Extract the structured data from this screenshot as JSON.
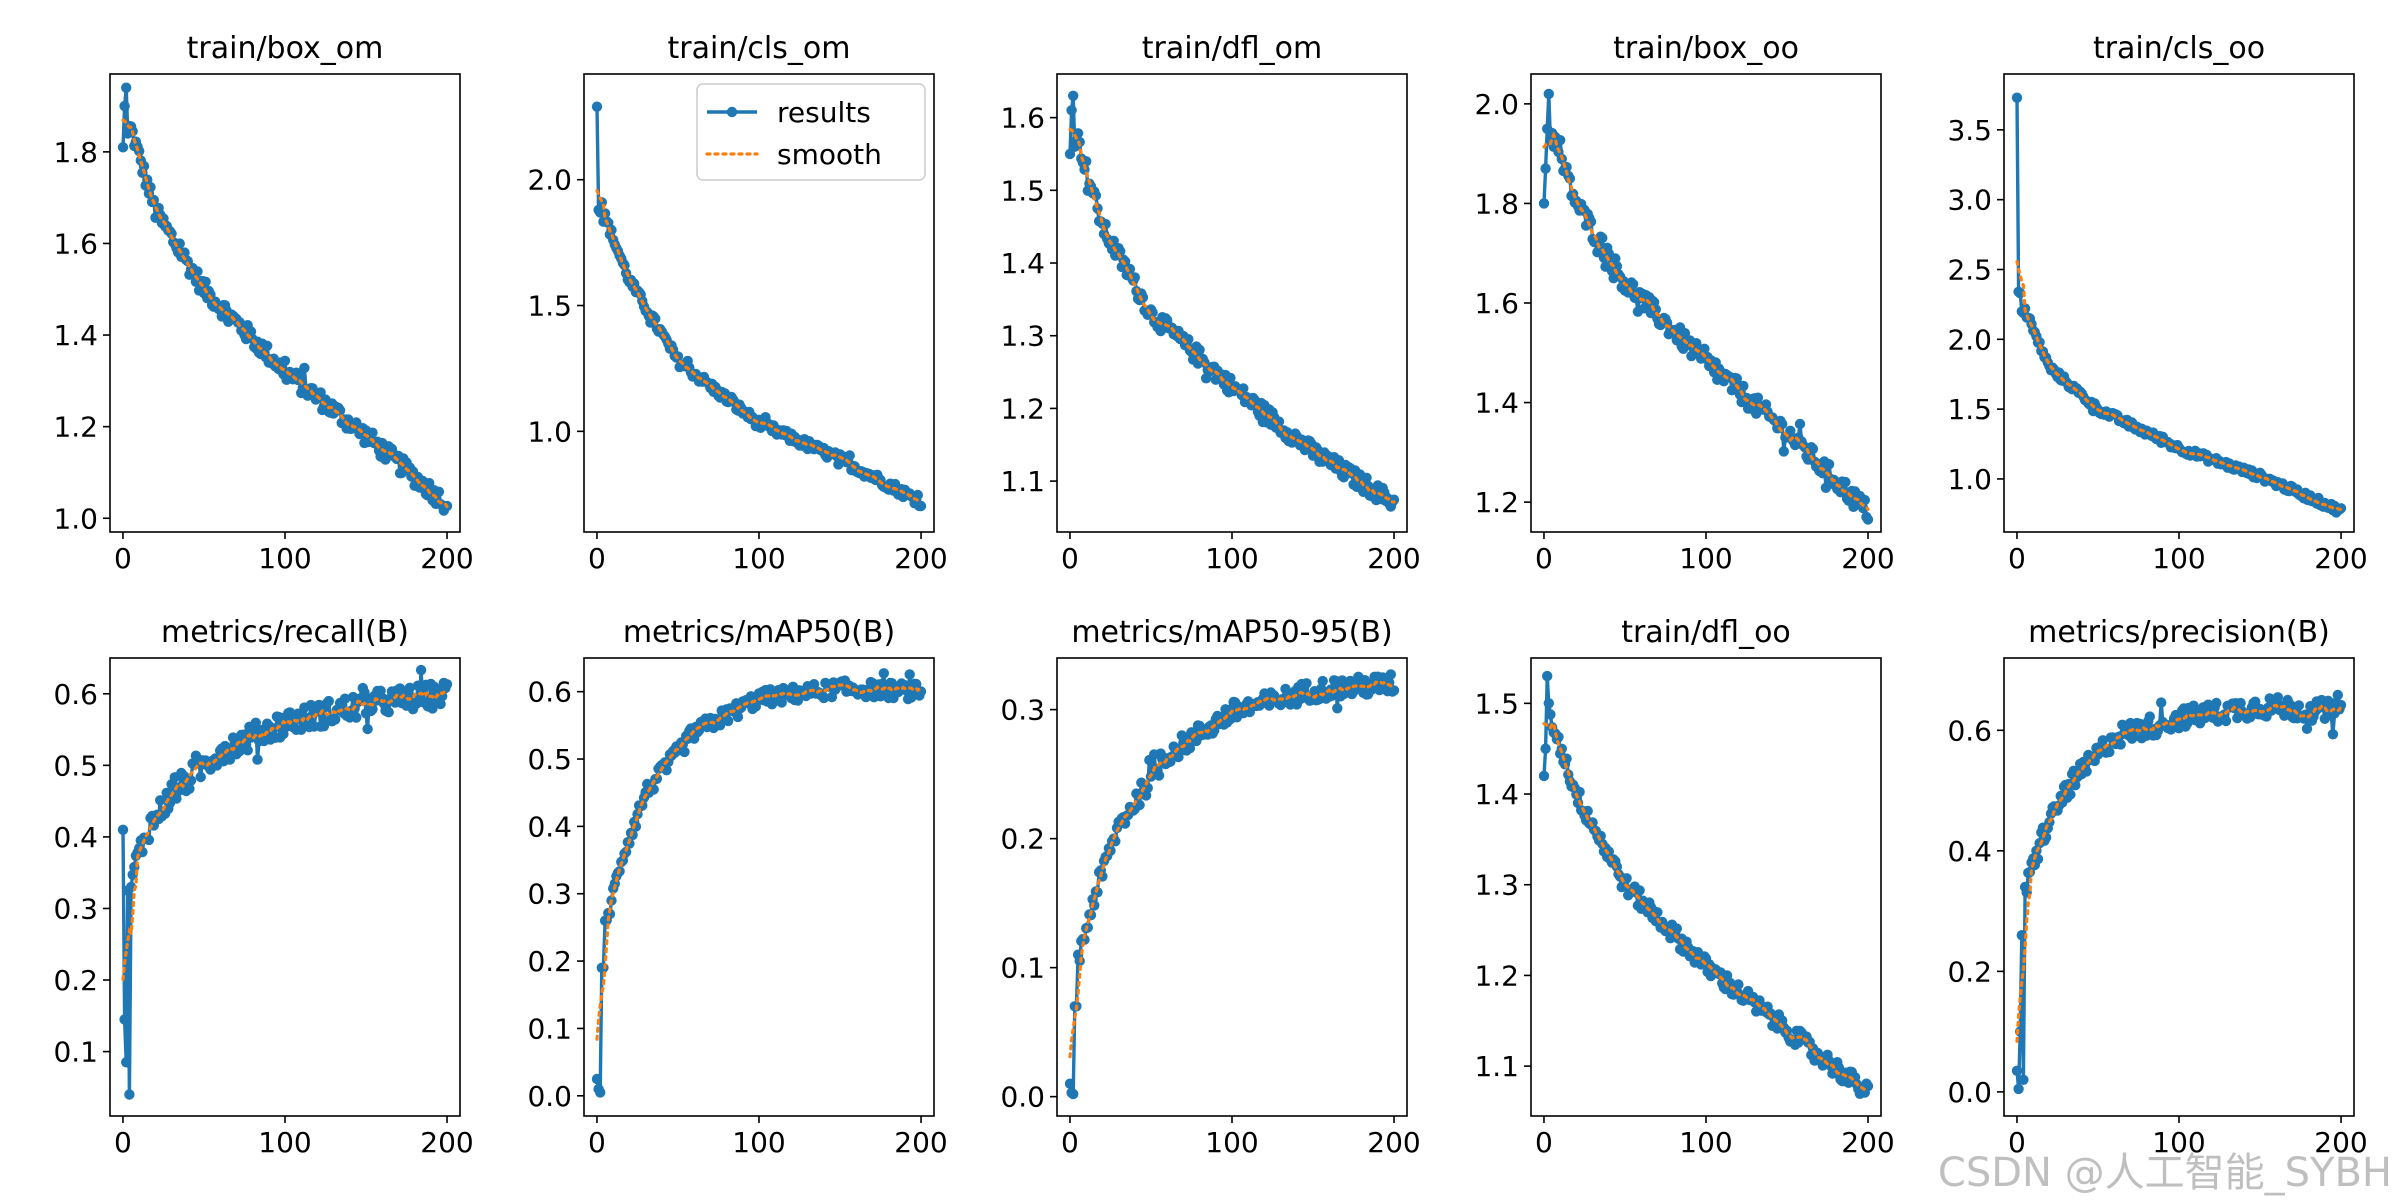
{
  "colors": {
    "results": "#1f77b4",
    "smooth": "#ff7f0e",
    "axes": "#000000"
  },
  "legend": {
    "results": "results",
    "smooth": "smooth",
    "location": "upper-right",
    "panel": 1
  },
  "watermark": "CSDN @人工智能_SYBH",
  "chart_data": [
    {
      "type": "line",
      "title": "train/box_om",
      "xlim": [
        -8,
        208
      ],
      "ylim": [
        0.97,
        1.97
      ],
      "xticks": [
        0,
        100,
        200
      ],
      "yticks": [
        1.0,
        1.2,
        1.4,
        1.6,
        1.8
      ],
      "ytick_labels": [
        "1.0",
        "1.2",
        "1.4",
        "1.6",
        "1.8"
      ],
      "start": [
        1.81,
        1.9,
        1.94,
        1.84
      ],
      "keypoints": [
        [
          5,
          1.85
        ],
        [
          20,
          1.67
        ],
        [
          50,
          1.5
        ],
        [
          100,
          1.32
        ],
        [
          150,
          1.18
        ],
        [
          200,
          1.03
        ]
      ],
      "noise": 0.02
    },
    {
      "type": "line",
      "title": "train/cls_om",
      "xlim": [
        -8,
        208
      ],
      "ylim": [
        0.6,
        2.42
      ],
      "xticks": [
        0,
        100,
        200
      ],
      "yticks": [
        1.0,
        1.5,
        2.0
      ],
      "ytick_labels": [
        "1.0",
        "1.5",
        "2.0"
      ],
      "start": [
        2.29,
        1.88,
        1.87,
        1.91
      ],
      "keypoints": [
        [
          5,
          1.85
        ],
        [
          20,
          1.6
        ],
        [
          50,
          1.28
        ],
        [
          100,
          1.03
        ],
        [
          150,
          0.89
        ],
        [
          200,
          0.72
        ]
      ],
      "noise": 0.02
    },
    {
      "type": "line",
      "title": "train/dfl_om",
      "xlim": [
        -8,
        208
      ],
      "ylim": [
        1.03,
        1.66
      ],
      "xticks": [
        0,
        100,
        200
      ],
      "yticks": [
        1.1,
        1.2,
        1.3,
        1.4,
        1.5,
        1.6
      ],
      "ytick_labels": [
        "1.1",
        "1.2",
        "1.3",
        "1.4",
        "1.5",
        "1.6"
      ],
      "start": [
        1.55,
        1.61,
        1.63,
        1.56
      ],
      "keypoints": [
        [
          5,
          1.57
        ],
        [
          20,
          1.45
        ],
        [
          50,
          1.33
        ],
        [
          100,
          1.23
        ],
        [
          150,
          1.14
        ],
        [
          200,
          1.07
        ]
      ],
      "noise": 0.012
    },
    {
      "type": "line",
      "title": "train/box_oo",
      "xlim": [
        -8,
        208
      ],
      "ylim": [
        1.14,
        2.06
      ],
      "xticks": [
        0,
        100,
        200
      ],
      "yticks": [
        1.2,
        1.4,
        1.6,
        1.8,
        2.0
      ],
      "ytick_labels": [
        "1.2",
        "1.4",
        "1.6",
        "1.8",
        "2.0"
      ],
      "start": [
        1.8,
        1.87,
        1.95,
        2.02
      ],
      "keypoints": [
        [
          5,
          1.94
        ],
        [
          20,
          1.8
        ],
        [
          50,
          1.64
        ],
        [
          100,
          1.48
        ],
        [
          150,
          1.34
        ],
        [
          200,
          1.18
        ]
      ],
      "noise": 0.02
    },
    {
      "type": "line",
      "title": "train/cls_oo",
      "xlim": [
        -8,
        208
      ],
      "ylim": [
        0.62,
        3.9
      ],
      "xticks": [
        0,
        100,
        200
      ],
      "yticks": [
        1.0,
        1.5,
        2.0,
        2.5,
        3.0,
        3.5
      ],
      "ytick_labels": [
        "1.0",
        "1.5",
        "2.0",
        "2.5",
        "3.0",
        "3.5"
      ],
      "start": [
        3.73,
        2.34,
        2.33,
        2.2
      ],
      "keypoints": [
        [
          5,
          2.2
        ],
        [
          20,
          1.8
        ],
        [
          50,
          1.5
        ],
        [
          100,
          1.22
        ],
        [
          150,
          1.02
        ],
        [
          200,
          0.77
        ]
      ],
      "noise": 0.025
    },
    {
      "type": "line",
      "title": "metrics/recall(B)",
      "xlim": [
        -8,
        208
      ],
      "ylim": [
        0.01,
        0.65
      ],
      "xticks": [
        0,
        100,
        200
      ],
      "yticks": [
        0.1,
        0.2,
        0.3,
        0.4,
        0.5,
        0.6
      ],
      "ytick_labels": [
        "0.1",
        "0.2",
        "0.3",
        "0.4",
        "0.5",
        "0.6"
      ],
      "start": [
        0.41,
        0.145,
        0.085,
        0.325,
        0.04,
        0.33
      ],
      "keypoints": [
        [
          6,
          0.35
        ],
        [
          15,
          0.41
        ],
        [
          30,
          0.46
        ],
        [
          60,
          0.52
        ],
        [
          100,
          0.56
        ],
        [
          150,
          0.585
        ],
        [
          200,
          0.6
        ]
      ],
      "noise": 0.018
    },
    {
      "type": "line",
      "title": "metrics/mAP50(B)",
      "xlim": [
        -8,
        208
      ],
      "ylim": [
        -0.03,
        0.65
      ],
      "xticks": [
        0,
        100,
        200
      ],
      "yticks": [
        0.0,
        0.1,
        0.2,
        0.3,
        0.4,
        0.5,
        0.6
      ],
      "ytick_labels": [
        "0.0",
        "0.1",
        "0.2",
        "0.3",
        "0.4",
        "0.5",
        "0.6"
      ],
      "start": [
        0.025,
        0.01,
        0.005,
        0.19,
        0.19,
        0.26
      ],
      "keypoints": [
        [
          6,
          0.26
        ],
        [
          15,
          0.35
        ],
        [
          30,
          0.45
        ],
        [
          60,
          0.54
        ],
        [
          100,
          0.59
        ],
        [
          150,
          0.605
        ],
        [
          200,
          0.6
        ]
      ],
      "noise": 0.012
    },
    {
      "type": "line",
      "title": "metrics/mAP50-95(B)",
      "xlim": [
        -8,
        208
      ],
      "ylim": [
        -0.015,
        0.34
      ],
      "xticks": [
        0,
        100,
        200
      ],
      "yticks": [
        0.0,
        0.1,
        0.2,
        0.3
      ],
      "ytick_labels": [
        "0.0",
        "0.1",
        "0.2",
        "0.3"
      ],
      "start": [
        0.01,
        0.003,
        0.002,
        0.07,
        0.07,
        0.11
      ],
      "keypoints": [
        [
          6,
          0.11
        ],
        [
          15,
          0.155
        ],
        [
          30,
          0.21
        ],
        [
          60,
          0.265
        ],
        [
          100,
          0.298
        ],
        [
          150,
          0.315
        ],
        [
          200,
          0.32
        ]
      ],
      "noise": 0.008
    },
    {
      "type": "line",
      "title": "train/dfl_oo",
      "xlim": [
        -8,
        208
      ],
      "ylim": [
        1.045,
        1.55
      ],
      "xticks": [
        0,
        100,
        200
      ],
      "yticks": [
        1.1,
        1.2,
        1.3,
        1.4,
        1.5
      ],
      "ytick_labels": [
        "1.1",
        "1.2",
        "1.3",
        "1.4",
        "1.5"
      ],
      "start": [
        1.42,
        1.45,
        1.53,
        1.5
      ],
      "keypoints": [
        [
          5,
          1.48
        ],
        [
          20,
          1.4
        ],
        [
          50,
          1.3
        ],
        [
          100,
          1.21
        ],
        [
          150,
          1.14
        ],
        [
          200,
          1.07
        ]
      ],
      "noise": 0.01
    },
    {
      "type": "line",
      "title": "metrics/precision(B)",
      "xlim": [
        -8,
        208
      ],
      "ylim": [
        -0.04,
        0.72
      ],
      "xticks": [
        0,
        100,
        200
      ],
      "yticks": [
        0.0,
        0.2,
        0.4,
        0.6
      ],
      "ytick_labels": [
        "0.0",
        "0.2",
        "0.4",
        "0.6"
      ],
      "start": [
        0.035,
        0.005,
        0.1,
        0.26,
        0.02,
        0.34
      ],
      "keypoints": [
        [
          6,
          0.34
        ],
        [
          15,
          0.42
        ],
        [
          30,
          0.5
        ],
        [
          60,
          0.59
        ],
        [
          100,
          0.62
        ],
        [
          150,
          0.64
        ],
        [
          200,
          0.63
        ]
      ],
      "noise": 0.018
    }
  ]
}
